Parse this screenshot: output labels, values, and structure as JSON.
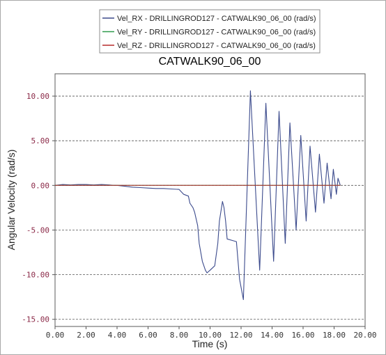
{
  "chart_data": {
    "type": "line",
    "title": "CATWALK90_06_00",
    "xlabel": "Time (s)",
    "ylabel": "Angular Velocity (rad/s)",
    "xlim": [
      0,
      20
    ],
    "ylim": [
      -15.8,
      12.5
    ],
    "grid": "horizontal dashed",
    "legend_position": "top-center",
    "x_ticks": [
      "0.00",
      "2.00",
      "4.00",
      "6.00",
      "8.00",
      "10.00",
      "12.00",
      "14.00",
      "16.00",
      "18.00",
      "20.00"
    ],
    "y_ticks": [
      "10.00",
      "5.00",
      "0.00",
      "-5.00",
      "-10.00",
      "-15.00"
    ],
    "series": [
      {
        "name": "Vel_RX - DRILLINGROD127 - CATWALK90_06_00 (rad/s)",
        "color": "#3b4a8c",
        "x": [
          0,
          0.5,
          1.0,
          1.5,
          2.0,
          2.5,
          3.0,
          3.5,
          3.8,
          4.0,
          4.5,
          5.0,
          5.5,
          6.0,
          6.5,
          7.0,
          7.5,
          8.0,
          8.3,
          8.6,
          8.7,
          8.9,
          9.0,
          9.2,
          9.3,
          9.5,
          9.7,
          9.8,
          10.0,
          10.3,
          10.5,
          10.6,
          10.8,
          10.9,
          11.0,
          11.1,
          11.5,
          11.7,
          11.9,
          12.15,
          12.6,
          13.2,
          13.6,
          14.1,
          14.45,
          14.85,
          15.15,
          15.55,
          15.85,
          16.2,
          16.45,
          16.8,
          17.05,
          17.35,
          17.55,
          17.8,
          17.95,
          18.15,
          18.25,
          18.4
        ],
        "y": [
          0,
          0.1,
          0.05,
          0.1,
          0.1,
          0.05,
          0.1,
          0.05,
          0.0,
          0.0,
          -0.1,
          -0.2,
          -0.25,
          -0.3,
          -0.35,
          -0.35,
          -0.4,
          -0.45,
          -1.0,
          -1.2,
          -2.0,
          -2.5,
          -3.0,
          -4.5,
          -6.5,
          -8.5,
          -9.5,
          -9.8,
          -9.5,
          -9.0,
          -6.5,
          -4.0,
          -1.8,
          -2.5,
          -4.0,
          -6.0,
          -6.2,
          -6.3,
          -10.5,
          -12.8,
          10.6,
          -9.5,
          9.2,
          -8.5,
          8.3,
          -6.5,
          7.0,
          -5.0,
          5.6,
          -4.0,
          4.4,
          -3.0,
          3.5,
          -2.0,
          2.5,
          -1.5,
          1.8,
          -1.0,
          0.8,
          0.0
        ]
      },
      {
        "name": "Vel_RY - DRILLINGROD127 - CATWALK90_06_00 (rad/s)",
        "color": "#2e9a4a",
        "x": [
          0,
          18.4
        ],
        "y": [
          0,
          0
        ]
      },
      {
        "name": "Vel_RZ - DRILLINGROD127 - CATWALK90_06_00 (rad/s)",
        "color": "#b52a2a",
        "x": [
          0,
          18.4
        ],
        "y": [
          0,
          0
        ]
      }
    ]
  }
}
